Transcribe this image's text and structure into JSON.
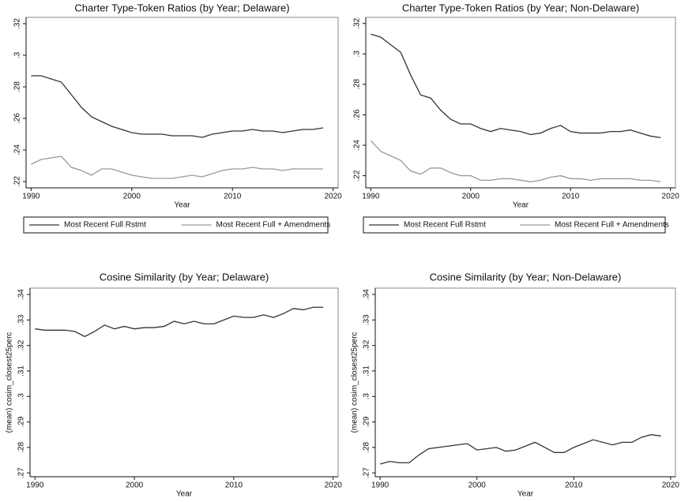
{
  "chart_data": [
    {
      "type": "line",
      "title": "Charter Type-Token Ratios (by Year; Delaware)",
      "xlabel": "Year",
      "x": [
        1990,
        1991,
        1992,
        1993,
        1994,
        1995,
        1996,
        1997,
        1998,
        1999,
        2000,
        2001,
        2002,
        2003,
        2004,
        2005,
        2006,
        2007,
        2008,
        2009,
        2010,
        2011,
        2012,
        2013,
        2014,
        2015,
        2016,
        2017,
        2018,
        2019
      ],
      "series": [
        {
          "name": "Most Recent Full Rstmt",
          "color": "#333333",
          "values": [
            0.287,
            0.287,
            0.285,
            0.283,
            0.275,
            0.267,
            0.261,
            0.258,
            0.255,
            0.253,
            0.251,
            0.25,
            0.25,
            0.25,
            0.249,
            0.249,
            0.249,
            0.248,
            0.25,
            0.251,
            0.252,
            0.252,
            0.253,
            0.252,
            0.252,
            0.251,
            0.252,
            0.253,
            0.253,
            0.254
          ]
        },
        {
          "name": "Most Recent Full + Amendments",
          "color": "#999999",
          "values": [
            0.231,
            0.234,
            0.235,
            0.236,
            0.229,
            0.227,
            0.224,
            0.228,
            0.228,
            0.226,
            0.224,
            0.223,
            0.222,
            0.222,
            0.222,
            0.223,
            0.224,
            0.223,
            0.225,
            0.227,
            0.228,
            0.228,
            0.229,
            0.228,
            0.228,
            0.227,
            0.228,
            0.228,
            0.228,
            0.228
          ]
        }
      ],
      "xlim": [
        1989.5,
        2020.5
      ],
      "xticks": [
        1990,
        2000,
        2010,
        2020
      ],
      "ylim": [
        0.216,
        0.324
      ],
      "yticks": [
        {
          "value": 0.22,
          "label": ".22"
        },
        {
          "value": 0.24,
          "label": ".24"
        },
        {
          "value": 0.26,
          "label": ".26"
        },
        {
          "value": 0.28,
          "label": ".28"
        },
        {
          "value": 0.3,
          "label": ".3"
        },
        {
          "value": 0.32,
          "label": ".32"
        }
      ],
      "legend": "bottom"
    },
    {
      "type": "line",
      "title": "Charter Type-Token Ratios (by Year; Non-Delaware)",
      "xlabel": "Year",
      "x": [
        1990,
        1991,
        1992,
        1993,
        1994,
        1995,
        1996,
        1997,
        1998,
        1999,
        2000,
        2001,
        2002,
        2003,
        2004,
        2005,
        2006,
        2007,
        2008,
        2009,
        2010,
        2011,
        2012,
        2013,
        2014,
        2015,
        2016,
        2017,
        2018,
        2019
      ],
      "series": [
        {
          "name": "Most Recent Full Rstmt",
          "color": "#333333",
          "values": [
            0.313,
            0.311,
            0.306,
            0.301,
            0.286,
            0.273,
            0.271,
            0.263,
            0.257,
            0.254,
            0.254,
            0.251,
            0.249,
            0.251,
            0.25,
            0.249,
            0.247,
            0.248,
            0.251,
            0.253,
            0.249,
            0.248,
            0.248,
            0.248,
            0.249,
            0.249,
            0.25,
            0.248,
            0.246,
            0.245
          ]
        },
        {
          "name": "Most Recent Full + Amendments",
          "color": "#999999",
          "values": [
            0.243,
            0.236,
            0.233,
            0.23,
            0.223,
            0.221,
            0.225,
            0.225,
            0.222,
            0.22,
            0.22,
            0.217,
            0.217,
            0.218,
            0.218,
            0.217,
            0.216,
            0.217,
            0.219,
            0.22,
            0.218,
            0.218,
            0.217,
            0.218,
            0.218,
            0.218,
            0.218,
            0.217,
            0.217,
            0.216
          ]
        }
      ],
      "xlim": [
        1989.5,
        2020.5
      ],
      "xticks": [
        1990,
        2000,
        2010,
        2020
      ],
      "ylim": [
        0.212,
        0.324
      ],
      "yticks": [
        {
          "value": 0.22,
          "label": ".22"
        },
        {
          "value": 0.24,
          "label": ".24"
        },
        {
          "value": 0.26,
          "label": ".26"
        },
        {
          "value": 0.28,
          "label": ".28"
        },
        {
          "value": 0.3,
          "label": ".3"
        },
        {
          "value": 0.32,
          "label": ".32"
        }
      ],
      "legend": "bottom"
    },
    {
      "type": "line",
      "title": "Cosine Similarity (by Year; Delaware)",
      "xlabel": "Year",
      "ylabel": "(mean) cosim_closest25perc",
      "x": [
        1990,
        1991,
        1992,
        1993,
        1994,
        1995,
        1996,
        1997,
        1998,
        1999,
        2000,
        2001,
        2002,
        2003,
        2004,
        2005,
        2006,
        2007,
        2008,
        2009,
        2010,
        2011,
        2012,
        2013,
        2014,
        2015,
        2016,
        2017,
        2018,
        2019
      ],
      "values": [
        0.3265,
        0.326,
        0.326,
        0.326,
        0.3255,
        0.3235,
        0.3255,
        0.328,
        0.3265,
        0.3275,
        0.3265,
        0.327,
        0.327,
        0.3275,
        0.3295,
        0.3285,
        0.3295,
        0.3285,
        0.3285,
        0.33,
        0.3315,
        0.331,
        0.331,
        0.332,
        0.331,
        0.3325,
        0.3345,
        0.334,
        0.335,
        0.335
      ],
      "color": "#333333",
      "xlim": [
        1989.5,
        2020.5
      ],
      "xticks": [
        1990,
        2000,
        2010,
        2020
      ],
      "ylim": [
        0.2685,
        0.3425
      ],
      "yticks": [
        {
          "value": 0.27,
          "label": ".27"
        },
        {
          "value": 0.28,
          "label": ".28"
        },
        {
          "value": 0.29,
          "label": ".29"
        },
        {
          "value": 0.3,
          "label": ".3"
        },
        {
          "value": 0.31,
          "label": ".31"
        },
        {
          "value": 0.32,
          "label": ".32"
        },
        {
          "value": 0.33,
          "label": ".33"
        },
        {
          "value": 0.34,
          "label": ".34"
        }
      ]
    },
    {
      "type": "line",
      "title": "Cosine Similarity (by Year; Non-Delaware)",
      "xlabel": "Year",
      "ylabel": "(mean) cosim_closest25perc",
      "x": [
        1990,
        1991,
        1992,
        1993,
        1994,
        1995,
        1996,
        1997,
        1998,
        1999,
        2000,
        2001,
        2002,
        2003,
        2004,
        2005,
        2006,
        2007,
        2008,
        2009,
        2010,
        2011,
        2012,
        2013,
        2014,
        2015,
        2016,
        2017,
        2018,
        2019
      ],
      "values": [
        0.2735,
        0.2745,
        0.274,
        0.274,
        0.277,
        0.2795,
        0.28,
        0.2805,
        0.281,
        0.2815,
        0.279,
        0.2795,
        0.28,
        0.2785,
        0.279,
        0.2805,
        0.282,
        0.28,
        0.278,
        0.278,
        0.28,
        0.2815,
        0.283,
        0.282,
        0.281,
        0.282,
        0.282,
        0.284,
        0.285,
        0.2845
      ],
      "color": "#333333",
      "xlim": [
        1989.5,
        2020.5
      ],
      "xticks": [
        1990,
        2000,
        2010,
        2020
      ],
      "ylim": [
        0.2685,
        0.3425
      ],
      "yticks": [
        {
          "value": 0.27,
          "label": ".27"
        },
        {
          "value": 0.28,
          "label": ".28"
        },
        {
          "value": 0.29,
          "label": ".29"
        },
        {
          "value": 0.3,
          "label": ".3"
        },
        {
          "value": 0.31,
          "label": ".31"
        },
        {
          "value": 0.32,
          "label": ".32"
        },
        {
          "value": 0.33,
          "label": ".33"
        },
        {
          "value": 0.34,
          "label": ".34"
        }
      ]
    }
  ]
}
